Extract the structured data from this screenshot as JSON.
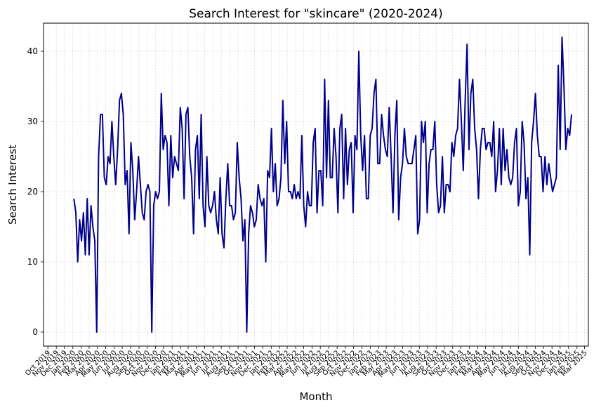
{
  "chart_data": {
    "type": "line",
    "title": "Search Interest for \"skincare\" (2020-2024)",
    "xlabel": "Month",
    "ylabel": "Search Interest",
    "xlim": [
      "2019-09-15",
      "2025-03-15"
    ],
    "ylim": [
      -2,
      44
    ],
    "yticks": [
      0,
      10,
      20,
      30,
      40
    ],
    "grid": true,
    "line_color": "#00008b",
    "xtick_labels": [
      "Oct 2019",
      "Nov 2019",
      "Dec 2019",
      "Jan 2020",
      "Feb 2020",
      "Mar 2020",
      "Apr 2020",
      "May 2020",
      "Jun 2020",
      "Jul 2020",
      "Aug 2020",
      "Sep 2020",
      "Oct 2020",
      "Nov 2020",
      "Dec 2020",
      "Jan 2021",
      "Feb 2021",
      "Mar 2021",
      "Apr 2021",
      "May 2021",
      "Jun 2021",
      "Jul 2021",
      "Aug 2021",
      "Sep 2021",
      "Oct 2021",
      "Nov 2021",
      "Dec 2021",
      "Jan 2022",
      "Feb 2022",
      "Mar 2022",
      "Apr 2022",
      "May 2022",
      "Jun 2022",
      "Jul 2022",
      "Aug 2022",
      "Sep 2022",
      "Oct 2022",
      "Nov 2022",
      "Dec 2022",
      "Jan 2023",
      "Feb 2023",
      "Mar 2023",
      "Apr 2023",
      "May 2023",
      "Jun 2023",
      "Jul 2023",
      "Aug 2023",
      "Sep 2023",
      "Oct 2023",
      "Nov 2023",
      "Dec 2023",
      "Jan 2024",
      "Feb 2024",
      "Mar 2024",
      "Apr 2024",
      "May 2024",
      "Jun 2024",
      "Jul 2024",
      "Aug 2024",
      "Sep 2024",
      "Oct 2024",
      "Nov 2024",
      "Dec 2024",
      "Jan 2025",
      "Feb 2025",
      "Mar 2025"
    ],
    "series": [
      {
        "start_date": "2020-01-05",
        "interval_days": 7,
        "values": [
          19,
          17,
          10,
          16,
          13,
          17,
          11,
          19,
          11,
          18,
          15,
          13,
          0,
          25,
          31,
          31,
          22,
          21,
          25,
          24,
          30,
          25,
          21,
          26,
          33,
          34,
          31,
          21,
          23,
          14,
          27,
          23,
          16,
          20,
          25,
          21,
          17,
          16,
          20,
          21,
          20,
          0,
          18,
          20,
          19,
          20,
          34,
          26,
          28,
          27,
          18,
          28,
          22,
          25,
          24,
          23,
          32,
          29,
          19,
          31,
          32,
          25,
          22,
          14,
          26,
          28,
          19,
          31,
          18,
          15,
          25,
          18,
          17,
          18,
          20,
          16,
          14,
          22,
          14,
          12,
          19,
          24,
          18,
          18,
          16,
          17,
          27,
          22,
          19,
          13,
          16,
          0,
          14,
          18,
          17,
          15,
          16,
          21,
          19,
          18,
          19,
          10,
          23,
          22,
          29,
          20,
          24,
          18,
          19,
          22,
          33,
          24,
          30,
          20,
          20,
          19,
          21,
          19,
          20,
          19,
          28,
          18,
          15,
          20,
          18,
          18,
          27,
          29,
          17,
          23,
          23,
          18,
          36,
          22,
          33,
          22,
          22,
          29,
          25,
          17,
          29,
          31,
          19,
          29,
          21,
          26,
          27,
          17,
          28,
          26,
          40,
          28,
          23,
          28,
          19,
          19,
          28,
          29,
          34,
          36,
          24,
          24,
          31,
          28,
          26,
          25,
          32,
          25,
          17,
          28,
          33,
          16,
          22,
          24,
          29,
          25,
          24,
          24,
          24,
          26,
          28,
          14,
          16,
          30,
          27,
          30,
          17,
          24,
          26,
          26,
          30,
          21,
          17,
          18,
          25,
          17,
          21,
          21,
          20,
          27,
          25,
          28,
          29,
          36,
          30,
          23,
          33,
          41,
          26,
          34,
          36,
          29,
          26,
          19,
          26,
          29,
          29,
          26,
          27,
          27,
          25,
          30,
          20,
          23,
          29,
          21,
          29,
          23,
          26,
          22,
          21,
          22,
          27,
          29,
          18,
          20,
          30,
          27,
          19,
          22,
          11,
          27,
          30,
          34,
          28,
          25,
          25,
          20,
          25,
          21,
          24,
          22,
          20,
          21,
          22,
          38,
          26,
          42,
          35,
          26,
          29,
          28,
          31
        ]
      }
    ]
  }
}
